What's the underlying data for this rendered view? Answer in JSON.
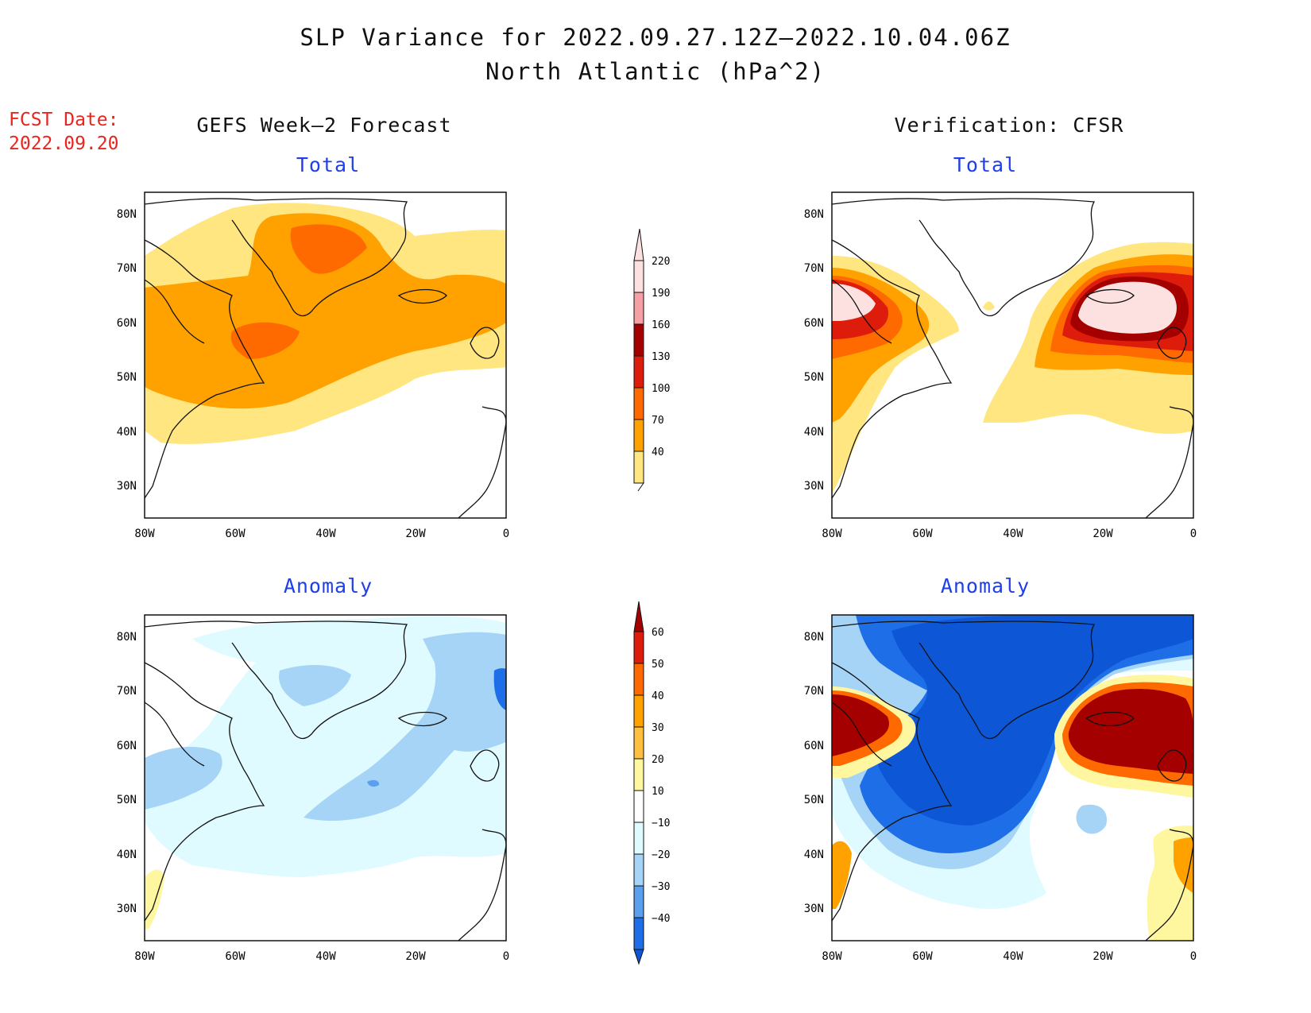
{
  "header": {
    "title_line1": "SLP Variance for 2022.09.27.12Z–2022.10.04.06Z",
    "title_line2": "North Atlantic (hPa^2)",
    "fcst_label": "FCST Date:",
    "fcst_date": "2022.09.20"
  },
  "columns": {
    "left": "GEFS Week–2 Forecast",
    "right": "Verification: CFSR"
  },
  "panels": {
    "total": "Total",
    "anomaly": "Anomaly"
  },
  "axes": {
    "lat_labels": [
      "80N",
      "70N",
      "60N",
      "50N",
      "40N",
      "30N"
    ],
    "lon_labels": [
      "80W",
      "60W",
      "40W",
      "20W",
      "0"
    ]
  },
  "colorbars": {
    "total": {
      "levels": [
        "220",
        "190",
        "160",
        "130",
        "100",
        "70",
        "40"
      ],
      "colors": [
        "#fde0e0",
        "#f4a0a4",
        "#a50000",
        "#dd1c0c",
        "#ff6a00",
        "#ffa200",
        "#ffe680"
      ]
    },
    "anomaly": {
      "levels": [
        "60",
        "50",
        "40",
        "30",
        "20",
        "10",
        "−10",
        "−20",
        "−30",
        "−40"
      ],
      "colors": [
        "#a50000",
        "#dd1c0c",
        "#ff6a00",
        "#ffa200",
        "#ffc040",
        "#fff6a0",
        "#ffffff",
        "#e0fbff",
        "#a5d4f7",
        "#5aa0ee",
        "#1e6ee8",
        "#0d56d6"
      ]
    }
  }
}
